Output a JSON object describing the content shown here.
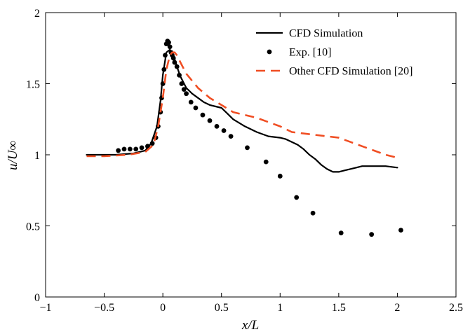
{
  "chart_data": {
    "type": "line",
    "xlabel": "x/L",
    "ylabel": "u/U∞",
    "xlim": [
      -1,
      2.5
    ],
    "ylim": [
      0,
      2
    ],
    "xticks": [
      -1,
      -0.5,
      0,
      0.5,
      1,
      1.5,
      2,
      2.5
    ],
    "xtick_labels": [
      "−1",
      "−0.5",
      "0",
      "0.5",
      "1",
      "1.5",
      "2",
      "2.5"
    ],
    "yticks": [
      0,
      0.5,
      1,
      1.5,
      2
    ],
    "ytick_labels": [
      "0",
      "0.5",
      "1",
      "1.5",
      "2"
    ],
    "grid": false,
    "legend_position": "top-right",
    "series": [
      {
        "name": "CFD Simulation",
        "style": "solid",
        "color": "#000000",
        "x": [
          -0.65,
          -0.4,
          -0.25,
          -0.15,
          -0.1,
          -0.05,
          -0.02,
          0.0,
          0.03,
          0.06,
          0.09,
          0.12,
          0.15,
          0.2,
          0.25,
          0.3,
          0.35,
          0.4,
          0.45,
          0.5,
          0.55,
          0.6,
          0.7,
          0.8,
          0.9,
          1.0,
          1.05,
          1.1,
          1.15,
          1.2,
          1.25,
          1.3,
          1.35,
          1.4,
          1.45,
          1.5,
          1.55,
          1.6,
          1.65,
          1.7,
          1.8,
          1.9,
          2.0
        ],
        "y": [
          1.0,
          1.0,
          1.01,
          1.03,
          1.08,
          1.2,
          1.38,
          1.56,
          1.72,
          1.74,
          1.7,
          1.62,
          1.55,
          1.47,
          1.43,
          1.4,
          1.37,
          1.35,
          1.34,
          1.33,
          1.29,
          1.25,
          1.2,
          1.16,
          1.13,
          1.12,
          1.11,
          1.09,
          1.07,
          1.04,
          1.0,
          0.97,
          0.93,
          0.9,
          0.88,
          0.88,
          0.89,
          0.9,
          0.91,
          0.92,
          0.92,
          0.92,
          0.91
        ]
      },
      {
        "name": "Exp. [10]",
        "style": "markers",
        "color": "#000000",
        "x": [
          -0.38,
          -0.33,
          -0.28,
          -0.23,
          -0.18,
          -0.13,
          -0.09,
          -0.06,
          -0.04,
          -0.02,
          -0.01,
          0.0,
          0.01,
          0.02,
          0.03,
          0.04,
          0.05,
          0.06,
          0.07,
          0.08,
          0.09,
          0.1,
          0.12,
          0.14,
          0.16,
          0.18,
          0.2,
          0.24,
          0.28,
          0.34,
          0.4,
          0.46,
          0.52,
          0.58,
          0.72,
          0.88,
          1.0,
          1.14,
          1.28,
          1.52,
          1.78,
          2.03
        ],
        "y": [
          1.03,
          1.04,
          1.04,
          1.04,
          1.05,
          1.06,
          1.08,
          1.12,
          1.2,
          1.3,
          1.4,
          1.5,
          1.6,
          1.7,
          1.78,
          1.8,
          1.79,
          1.76,
          1.72,
          1.7,
          1.68,
          1.65,
          1.62,
          1.56,
          1.5,
          1.46,
          1.43,
          1.37,
          1.33,
          1.28,
          1.24,
          1.2,
          1.17,
          1.13,
          1.05,
          0.95,
          0.85,
          0.7,
          0.59,
          0.45,
          0.44,
          0.47
        ]
      },
      {
        "name": "Other CFD Simulation [20]",
        "style": "dashed",
        "color": "#f04e23",
        "x": [
          -0.65,
          -0.5,
          -0.3,
          -0.15,
          -0.08,
          -0.04,
          0.0,
          0.03,
          0.06,
          0.08,
          0.1,
          0.12,
          0.15,
          0.2,
          0.3,
          0.4,
          0.5,
          0.6,
          0.7,
          0.8,
          0.9,
          1.0,
          1.1,
          1.2,
          1.3,
          1.4,
          1.5,
          1.6,
          1.7,
          1.8,
          1.9,
          2.0
        ],
        "y": [
          0.99,
          0.99,
          1.0,
          1.02,
          1.07,
          1.2,
          1.4,
          1.6,
          1.7,
          1.72,
          1.72,
          1.7,
          1.65,
          1.57,
          1.47,
          1.4,
          1.35,
          1.3,
          1.28,
          1.26,
          1.23,
          1.2,
          1.16,
          1.15,
          1.14,
          1.13,
          1.12,
          1.09,
          1.06,
          1.03,
          1.0,
          0.98
        ]
      }
    ]
  }
}
